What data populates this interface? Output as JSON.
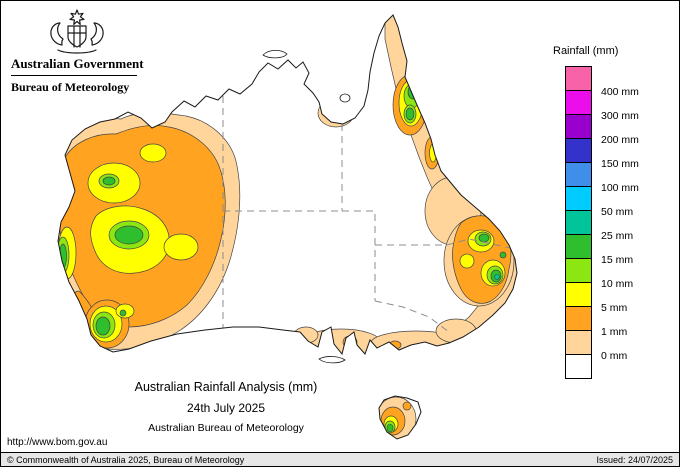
{
  "header": {
    "line1": "Australian Government",
    "line2": "Bureau of Meteorology",
    "crest_icon": "australian-coat-of-arms"
  },
  "legend": {
    "title": "Rainfall (mm)",
    "entries": [
      {
        "key": "pink",
        "color": "#F762A8",
        "label": "400 mm"
      },
      {
        "key": "magenta",
        "color": "#EB0EEB",
        "label": "300 mm"
      },
      {
        "key": "purple",
        "color": "#9A00CD",
        "label": "200 mm"
      },
      {
        "key": "darkblue",
        "color": "#3333CC",
        "label": "150 mm"
      },
      {
        "key": "blue",
        "color": "#3E8EEA",
        "label": "100 mm"
      },
      {
        "key": "cyan",
        "color": "#00CCFF",
        "label": "50 mm"
      },
      {
        "key": "teal",
        "color": "#00C49A",
        "label": "25 mm"
      },
      {
        "key": "green",
        "color": "#2EBE2E",
        "label": "15 mm"
      },
      {
        "key": "lightgreen",
        "color": "#8CE612",
        "label": "10 mm"
      },
      {
        "key": "yellow",
        "color": "#FFFF00",
        "label": "5 mm"
      },
      {
        "key": "orange",
        "color": "#FFA321",
        "label": "1 mm"
      },
      {
        "key": "tan",
        "color": "#FFD59B",
        "label": "0 mm"
      },
      {
        "key": "white",
        "color": "#FFFFFF",
        "label": ""
      }
    ]
  },
  "caption": {
    "title": "Australian Rainfall Analysis (mm)",
    "date": "24th July 2025",
    "org": "Australian Bureau of Meteorology"
  },
  "url": "http://www.bom.gov.au",
  "footer": {
    "copyright": "© Commonwealth of Australia 2025, Bureau of Meteorology",
    "issued": "Issued: 24/07/2025"
  },
  "map_content": {
    "type": "rainfall-contour-map",
    "region": "Australia",
    "regions_observed": [
      {
        "name": "western-australia-interior",
        "peak_band": "15-25 mm"
      },
      {
        "name": "southwest-western-australia",
        "peak_band": "15-25 mm"
      },
      {
        "name": "north-queensland-coast",
        "peak_band": "25-50 mm"
      },
      {
        "name": "southeast-queensland-northeast-nsw",
        "peak_band": "25-50 mm"
      },
      {
        "name": "south-australia-gulfs-coast",
        "peak_band": "5-10 mm"
      },
      {
        "name": "tasmania",
        "peak_band": "15-25 mm"
      },
      {
        "name": "central-interior",
        "peak_band": "0 mm"
      }
    ]
  }
}
